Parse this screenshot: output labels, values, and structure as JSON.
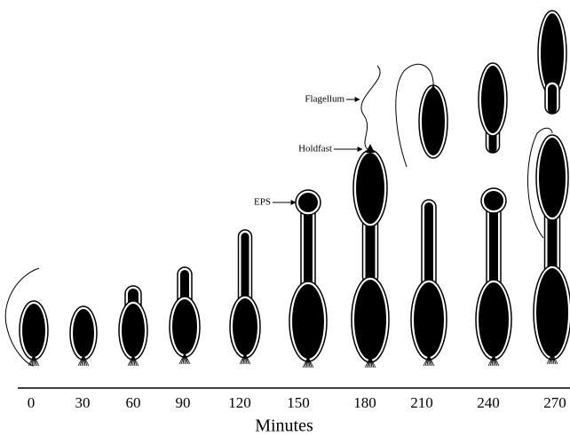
{
  "figure": {
    "time_labels": [
      0,
      30,
      60,
      90,
      120,
      150,
      180,
      210,
      240,
      270
    ],
    "axis_title": "Minutes",
    "annotations": {
      "flagellum": "Flagellum",
      "holdfast": "Holdfast",
      "eps": "EPS"
    }
  }
}
